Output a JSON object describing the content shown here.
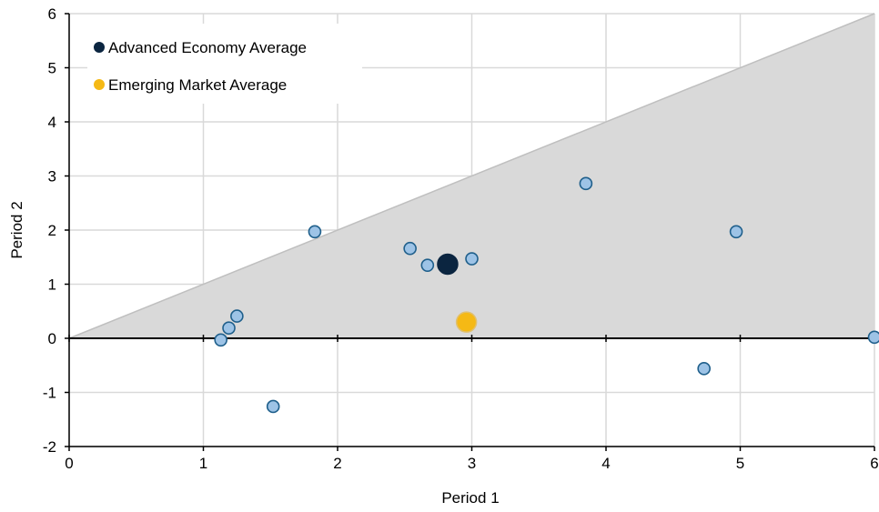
{
  "chart_data": {
    "type": "scatter",
    "xlabel": "Period 1",
    "ylabel": "Period 2",
    "xlim": [
      0,
      6
    ],
    "ylim": [
      -2,
      6
    ],
    "x_ticks": [
      0,
      1,
      2,
      3,
      4,
      5,
      6
    ],
    "y_ticks": [
      -2,
      -1,
      0,
      1,
      2,
      3,
      4,
      5,
      6
    ],
    "grid": true,
    "legend_position": "top-left",
    "shaded_region": {
      "description": "area between the 45-degree line y = x and y = 0",
      "color": "#d9d9d9",
      "boundary_color": "#bfbfbf"
    },
    "series": [
      {
        "color": "#9dc3e6",
        "edge_color": "#1f5f8b",
        "points": [
          {
            "x": 1.13,
            "y": -0.03
          },
          {
            "x": 1.19,
            "y": 0.19
          },
          {
            "x": 1.25,
            "y": 0.41
          },
          {
            "x": 1.52,
            "y": -1.26
          },
          {
            "x": 1.83,
            "y": 1.97
          },
          {
            "x": 2.54,
            "y": 1.66
          },
          {
            "x": 2.67,
            "y": 1.35
          },
          {
            "x": 3.0,
            "y": 1.47
          },
          {
            "x": 3.85,
            "y": 2.86
          },
          {
            "x": 4.73,
            "y": -0.56
          },
          {
            "x": 4.97,
            "y": 1.97
          },
          {
            "x": 6.0,
            "y": 0.02
          }
        ]
      },
      {
        "name": "Advanced Economy Average",
        "color": "#0b2540",
        "points": [
          {
            "x": 2.82,
            "y": 1.37
          }
        ]
      },
      {
        "name": "Emerging Market Average",
        "color": "#f5b915",
        "points": [
          {
            "x": 2.96,
            "y": 0.3
          }
        ]
      }
    ],
    "legend": [
      {
        "label": "Advanced Economy Average",
        "color": "#0b2540"
      },
      {
        "label": "Emerging Market Average",
        "color": "#f5b915"
      }
    ]
  }
}
